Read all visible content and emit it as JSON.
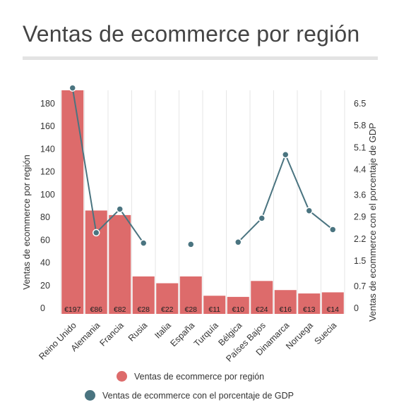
{
  "title": "Ventas de ecommerce por región",
  "colors": {
    "bar": "#dd6b6b",
    "line": "#4a7480",
    "grid": "#e6e6e6",
    "text": "#333333"
  },
  "chart_data": {
    "type": "bar",
    "categories": [
      "Reino Unido",
      "Alemania",
      "Francia",
      "Rusia",
      "Italia",
      "España",
      "Turquía",
      "Bélgica",
      "Países Bajos",
      "Dinamarca",
      "Noruega",
      "Suecia"
    ],
    "series": [
      {
        "name": "Ventas de ecommerce por región",
        "type": "bar",
        "axis": "left",
        "values": [
          197,
          86,
          82,
          28,
          22,
          28,
          11,
          10,
          24,
          16,
          13,
          14
        ],
        "data_labels": [
          "€197",
          "€86",
          "€82",
          "€28",
          "€22",
          "€28",
          "€11",
          "€10",
          "€24",
          "€16",
          "€13",
          "€14"
        ]
      },
      {
        "name": "Ventas de ecommerce con el porcentaje de GDP",
        "type": "line",
        "axis": "right",
        "values": [
          7.0,
          2.4,
          3.15,
          2.07,
          null,
          2.03,
          null,
          2.1,
          2.86,
          4.88,
          3.1,
          2.5
        ]
      }
    ],
    "ylabel": "Ventas de ecommerce por región",
    "y2label": "Ventas de ecommerce con el porcentaje de GDP",
    "yticks": [
      "0",
      "20",
      "40",
      "60",
      "80",
      "100",
      "120",
      "140",
      "160",
      "180"
    ],
    "y2ticks": [
      "0",
      "0.7",
      "1.5",
      "2.2",
      "2.9",
      "3.6",
      "4.4",
      "5.1",
      "5.8",
      "6.5"
    ],
    "ylim": [
      0,
      180
    ],
    "y2lim": [
      0,
      6.5
    ],
    "grid": "vertical",
    "legend_position": "bottom"
  }
}
